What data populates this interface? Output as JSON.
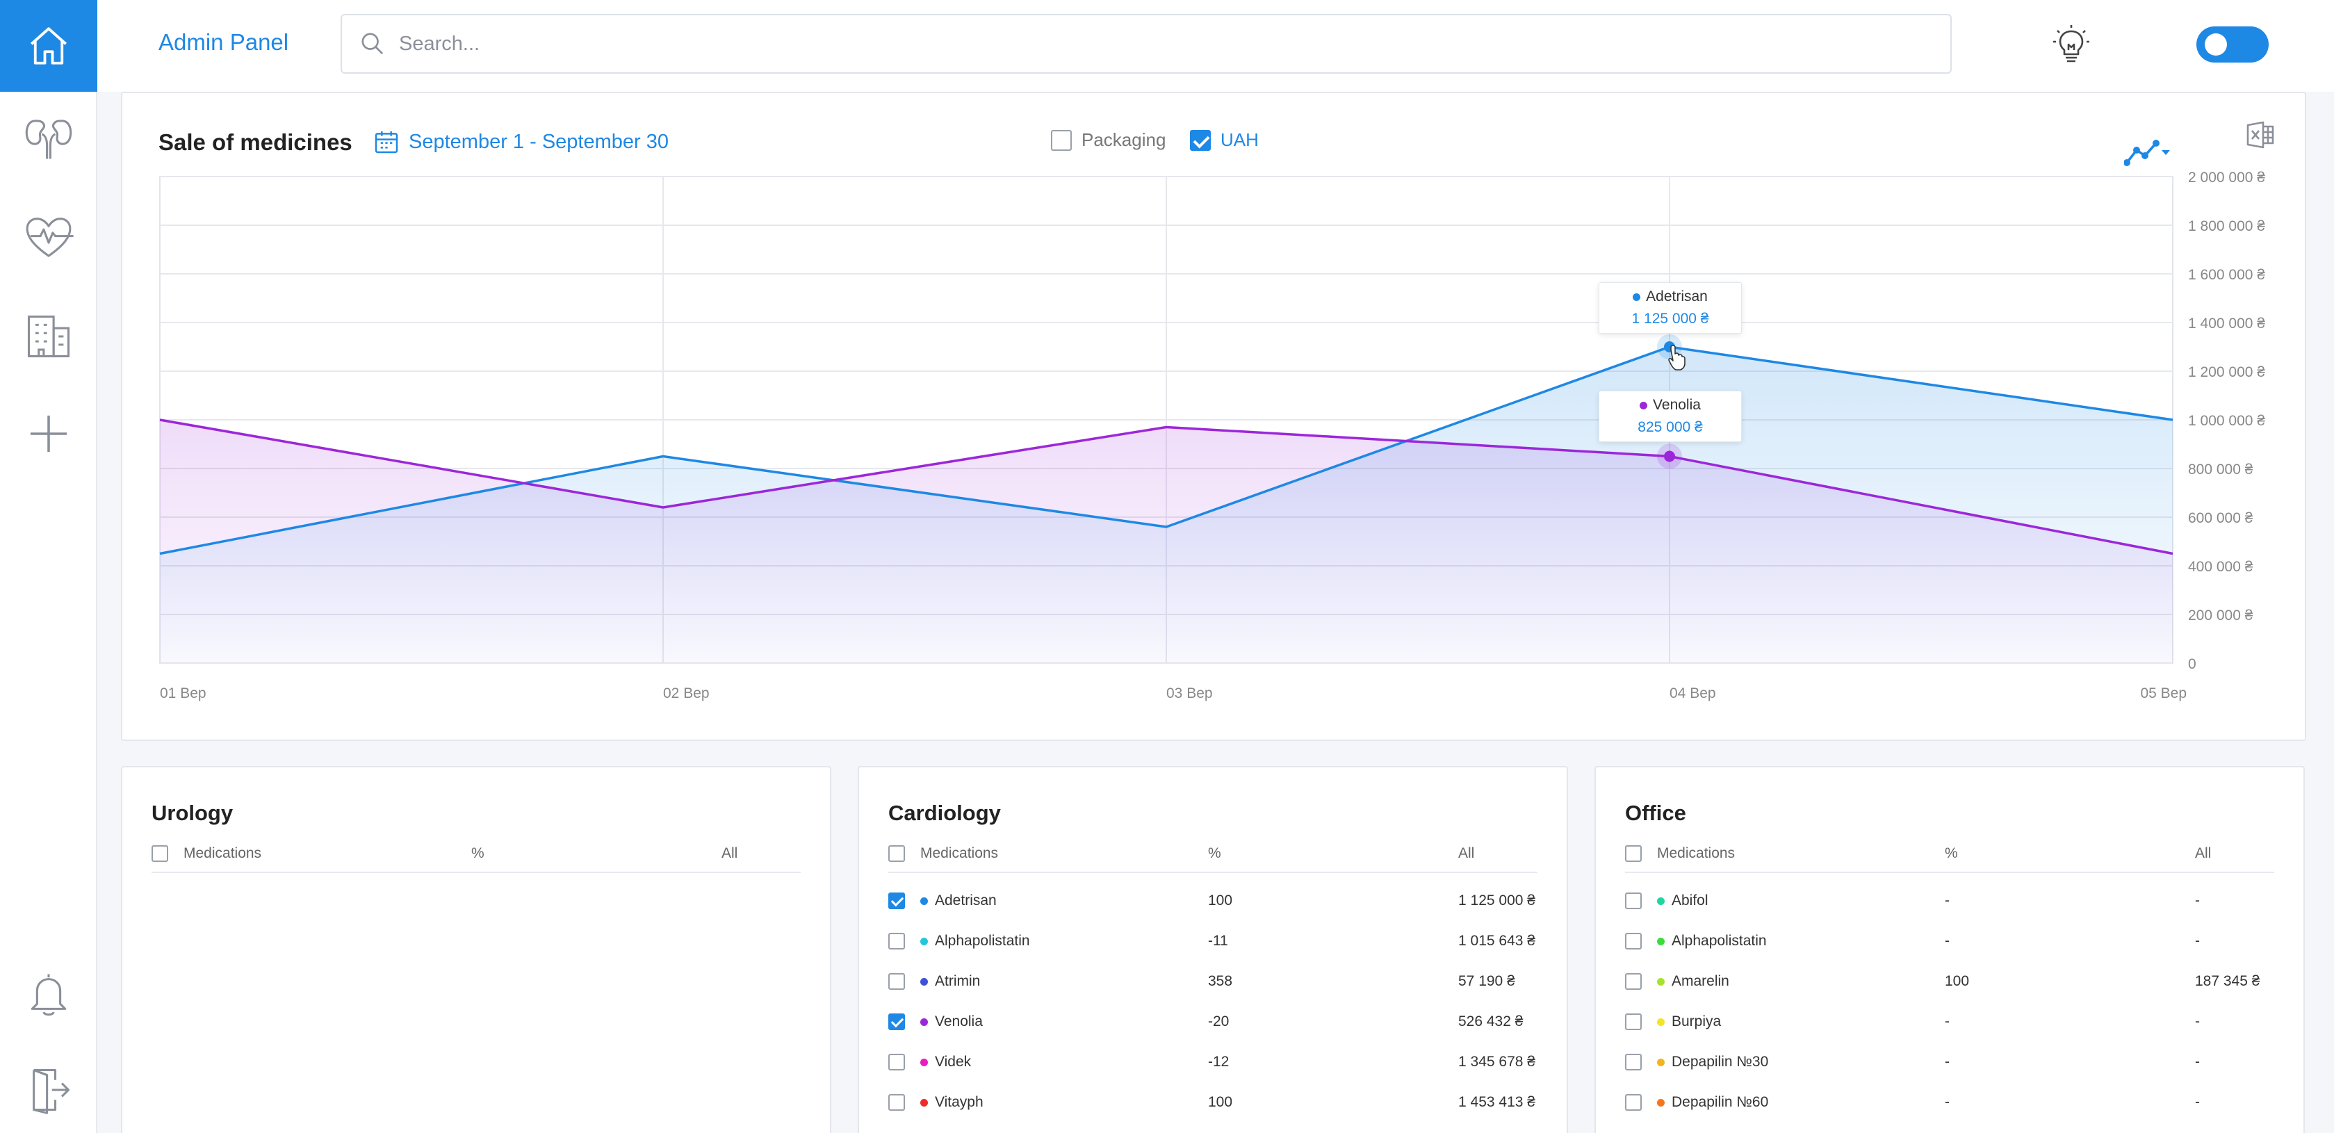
{
  "header": {
    "title": "Admin Panel",
    "search_placeholder": "Search..."
  },
  "sidebar": {
    "items": [
      {
        "icon": "home-icon"
      },
      {
        "icon": "kidneys-icon"
      },
      {
        "icon": "heart-pulse-icon"
      },
      {
        "icon": "building-icon"
      },
      {
        "icon": "plus-icon"
      },
      {
        "icon": "bell-icon"
      },
      {
        "icon": "logout-icon"
      }
    ]
  },
  "colors": {
    "accent": "#1e88e5",
    "adetrisan": "#1e88e5",
    "venolia": "#9c27d9"
  },
  "chart_card": {
    "title": "Sale of medicines",
    "date_range": "September 1 - September 30",
    "packaging_label": "Packaging",
    "packaging_checked": false,
    "uah_label": "UAH",
    "uah_checked": true
  },
  "chart_data": {
    "type": "area",
    "categories": [
      "01 Bep",
      "02 Bep",
      "03 Bep",
      "04 Bep",
      "05 Bep"
    ],
    "y_ticks": [
      "0",
      "200 000 ₴",
      "400 000 ₴",
      "600 000 ₴",
      "800 000 ₴",
      "1 000 000 ₴",
      "1 200 000 ₴",
      "1 400 000 ₴",
      "1 600 000 ₴",
      "1 800 000 ₴",
      "2 000 000 ₴"
    ],
    "ylim": [
      0,
      2000000
    ],
    "grid": true,
    "series": [
      {
        "name": "Adetrisan",
        "color": "#1e88e5",
        "values": [
          450000,
          850000,
          560000,
          1300000,
          1000000
        ]
      },
      {
        "name": "Venolia",
        "color": "#9c27d9",
        "values": [
          1000000,
          640000,
          970000,
          850000,
          450000
        ]
      }
    ],
    "tooltips": [
      {
        "name": "Adetrisan",
        "value": "1 125 000 ₴",
        "color": "#1e88e5"
      },
      {
        "name": "Venolia",
        "value": "825 000 ₴",
        "color": "#9c27d9"
      }
    ]
  },
  "table_headers": {
    "medications": "Medications",
    "percent": "%",
    "all": "All"
  },
  "panels": {
    "urology": {
      "title": "Urology",
      "rows": []
    },
    "cardiology": {
      "title": "Cardiology",
      "rows": [
        {
          "checked": true,
          "color": "#1e88e5",
          "name": "Adetrisan",
          "pct": "100",
          "all": "1 125 000 ₴"
        },
        {
          "checked": false,
          "color": "#26c6da",
          "name": "Alphapolistatin",
          "pct": "-11",
          "all": "1 015 643 ₴"
        },
        {
          "checked": false,
          "color": "#3f51d6",
          "name": "Atrimin",
          "pct": "358",
          "all": "57 190 ₴"
        },
        {
          "checked": true,
          "color": "#9c27d9",
          "name": "Venolia",
          "pct": "-20",
          "all": "526 432 ₴"
        },
        {
          "checked": false,
          "color": "#e91ec0",
          "name": "Videk",
          "pct": "-12",
          "all": "1 345 678 ₴"
        },
        {
          "checked": false,
          "color": "#ef2a2a",
          "name": "Vitayph",
          "pct": "100",
          "all": "1 453 413 ₴"
        }
      ]
    },
    "office": {
      "title": "Office",
      "rows": [
        {
          "checked": false,
          "color": "#1fd6a0",
          "name": "Abifol",
          "pct": "-",
          "all": "-"
        },
        {
          "checked": false,
          "color": "#3ddc3d",
          "name": "Alphapolistatin",
          "pct": "-",
          "all": "-"
        },
        {
          "checked": false,
          "color": "#a6e22e",
          "name": "Amarelin",
          "pct": "100",
          "all": "187 345 ₴"
        },
        {
          "checked": false,
          "color": "#f2e526",
          "name": "Burpiya",
          "pct": "-",
          "all": "-"
        },
        {
          "checked": false,
          "color": "#f5b31b",
          "name": "Depapilin №30",
          "pct": "-",
          "all": "-"
        },
        {
          "checked": false,
          "color": "#f5761b",
          "name": "Depapilin №60",
          "pct": "-",
          "all": "-"
        }
      ]
    }
  }
}
